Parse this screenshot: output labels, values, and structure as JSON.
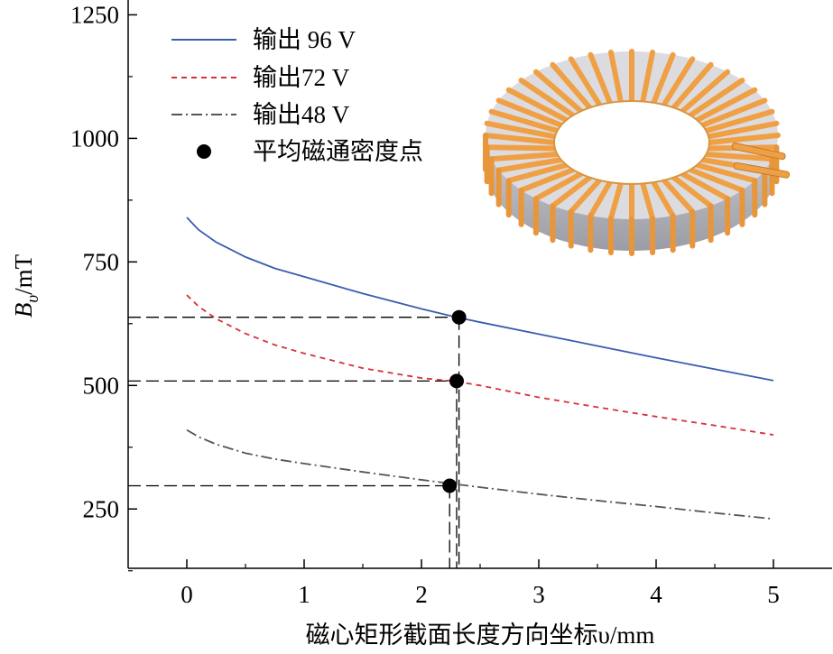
{
  "chart_data": {
    "type": "line",
    "title": "",
    "xlabel": "磁心矩形截面长度方向坐标υ/mm",
    "ylabel_main": "B",
    "ylabel_sub": "υ",
    "ylabel_unit": "/mT",
    "xlim": [
      -0.5,
      5.5
    ],
    "ylim": [
      130,
      1280
    ],
    "xticks": [
      0,
      1,
      2,
      3,
      4,
      5
    ],
    "yticks": [
      250,
      500,
      750,
      1000,
      1250
    ],
    "grid": false,
    "legend_position": "top-left",
    "series": [
      {
        "name": "输出 96 V",
        "style": "solid",
        "color": "#3a5dad",
        "x": [
          0,
          0.1,
          0.25,
          0.5,
          0.75,
          1,
          1.5,
          2,
          2.3,
          2.5,
          3,
          3.5,
          4,
          4.5,
          5
        ],
        "y": [
          840,
          815,
          790,
          760,
          737,
          720,
          686,
          655,
          638,
          628,
          604,
          580,
          556,
          533,
          510
        ]
      },
      {
        "name": "输出72 V",
        "style": "dashed",
        "color": "#d6303a",
        "x": [
          0,
          0.1,
          0.25,
          0.5,
          0.75,
          1,
          1.5,
          2,
          2.3,
          2.5,
          3,
          3.5,
          4,
          4.5,
          5
        ],
        "y": [
          683,
          660,
          635,
          605,
          582,
          565,
          535,
          515,
          508,
          500,
          476,
          456,
          437,
          419,
          400
        ]
      },
      {
        "name": "输出48 V",
        "style": "dashdot",
        "color": "#555555",
        "x": [
          0,
          0.1,
          0.25,
          0.5,
          0.75,
          1,
          1.5,
          2,
          2.3,
          2.5,
          3,
          3.5,
          4,
          4.5,
          5
        ],
        "y": [
          410,
          396,
          381,
          363,
          351,
          342,
          325,
          309,
          300,
          294,
          280,
          267,
          255,
          242,
          230
        ]
      }
    ],
    "points": {
      "name": "平均磁通密度点",
      "color": "#000000",
      "x": [
        2.32,
        2.3,
        2.24
      ],
      "y": [
        638,
        509,
        297
      ]
    }
  },
  "illustration": {
    "name": "toroidal-core-coil",
    "coil_color": "#f0a044",
    "core_color": "#c8c8cc"
  }
}
